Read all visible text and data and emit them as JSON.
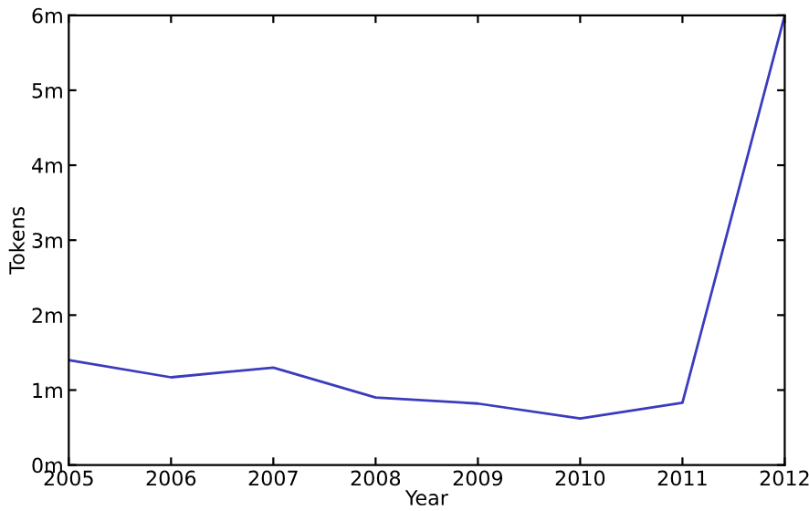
{
  "chart_data": {
    "type": "line",
    "xlabel": "Year",
    "ylabel": "Tokens",
    "x": [
      2005,
      2006,
      2007,
      2008,
      2009,
      2010,
      2011,
      2012
    ],
    "series": [
      {
        "color": "#3b3bbf",
        "values": [
          1.4,
          1.17,
          1.3,
          0.9,
          0.82,
          0.62,
          0.83,
          6.0
        ]
      }
    ],
    "xlim": [
      2005,
      2012
    ],
    "xticks": [
      2005,
      2006,
      2007,
      2008,
      2009,
      2010,
      2011,
      2012
    ],
    "ylim": [
      0,
      6
    ],
    "yticks": [
      {
        "value": 0,
        "label": "0m"
      },
      {
        "value": 1,
        "label": "1m"
      },
      {
        "value": 2,
        "label": "2m"
      },
      {
        "value": 3,
        "label": "3m"
      },
      {
        "value": 4,
        "label": "4m"
      },
      {
        "value": 5,
        "label": "5m"
      },
      {
        "value": 6,
        "label": "6m"
      }
    ],
    "grid": false,
    "legend": false,
    "marker": "none",
    "line_style": "solid"
  }
}
